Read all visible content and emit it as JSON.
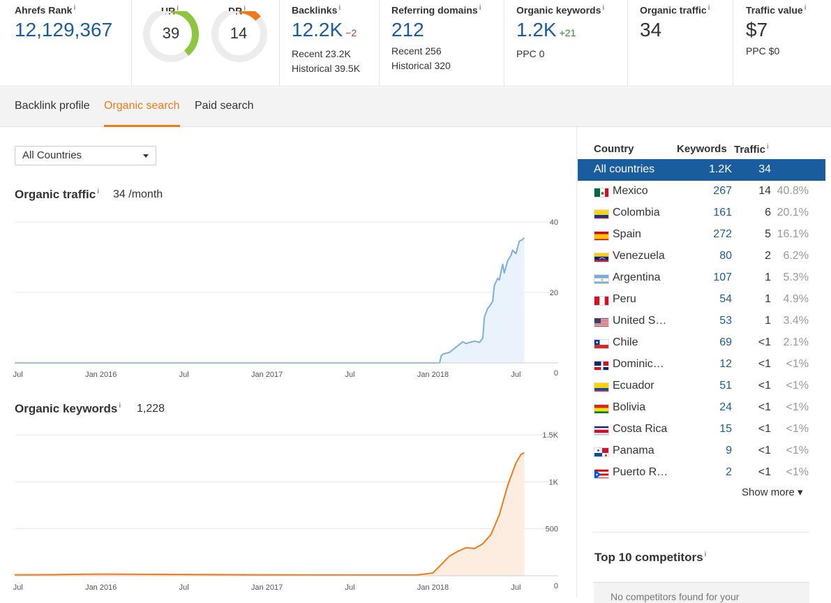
{
  "metrics": {
    "ahrefs_rank": {
      "label": "Ahrefs Rank",
      "value": "12,129,367"
    },
    "ur": {
      "label": "UR",
      "value": "39",
      "fraction": 0.39,
      "color": "#8cc63f"
    },
    "dr": {
      "label": "DR",
      "value": "14",
      "fraction": 0.14,
      "color": "#f07a1a"
    },
    "backlinks": {
      "label": "Backlinks",
      "value": "12.2K",
      "delta": "−2",
      "recent": "Recent 23.2K",
      "historical": "Historical 39.5K"
    },
    "referring_domains": {
      "label": "Referring domains",
      "value": "212",
      "recent": "Recent 256",
      "historical": "Historical 320"
    },
    "organic_keywords": {
      "label": "Organic keywords",
      "value": "1.2K",
      "delta": "+21",
      "ppc": "PPC 0"
    },
    "organic_traffic": {
      "label": "Organic traffic",
      "value": "34"
    },
    "traffic_value": {
      "label": "Traffic value",
      "value": "$7",
      "ppc": "PPC $0"
    }
  },
  "tabs": [
    "Backlink profile",
    "Organic search",
    "Paid search"
  ],
  "active_tab": "Organic search",
  "country_filter": {
    "selected": "All Countries"
  },
  "organic_traffic_section": {
    "title": "Organic traffic",
    "value": "34",
    "unit": "/month"
  },
  "organic_keywords_section": {
    "title": "Organic keywords",
    "value": "1,228"
  },
  "chart_data": [
    {
      "type": "area",
      "series": [
        {
          "name": "Organic traffic",
          "color": "#7ab0de",
          "fill": "#eaf3fb"
        }
      ],
      "x_tick_labels": [
        "Jul",
        "Jan 2016",
        "Jul",
        "Jan 2017",
        "Jul",
        "Jan 2018",
        "Jul"
      ],
      "x_ticks": [
        2015.5,
        2016.0,
        2016.5,
        2017.0,
        2017.5,
        2018.0,
        2018.5
      ],
      "y_tick_labels": [
        "0",
        "20",
        "40"
      ],
      "y_ticks": [
        0,
        20,
        40
      ],
      "xlim": [
        2015.48,
        2018.62
      ],
      "ylim": [
        0,
        40
      ],
      "x": [
        2015.48,
        2018.04,
        2018.05,
        2018.06,
        2018.1,
        2018.14,
        2018.18,
        2018.2,
        2018.25,
        2018.28,
        2018.3,
        2018.31,
        2018.33,
        2018.34,
        2018.36,
        2018.37,
        2018.39,
        2018.4,
        2018.42,
        2018.43,
        2018.45,
        2018.47,
        2018.48,
        2018.5,
        2018.52,
        2018.54,
        2018.55
      ],
      "y": [
        0,
        0,
        2,
        2.5,
        3,
        4.5,
        6,
        5.5,
        6.2,
        5.8,
        7,
        13,
        15.5,
        16,
        17.5,
        22,
        24,
        23.5,
        28,
        25.5,
        29,
        30.5,
        32,
        31,
        34.5,
        35,
        35.5
      ]
    },
    {
      "type": "area",
      "series": [
        {
          "name": "Organic keywords",
          "color": "#f07a1a",
          "fill": "#fdece0"
        }
      ],
      "x_tick_labels": [
        "Jul",
        "Jan 2016",
        "Jul",
        "Jan 2017",
        "Jul",
        "Jan 2018",
        "Jul"
      ],
      "x_ticks": [
        2015.5,
        2016.0,
        2016.5,
        2017.0,
        2017.5,
        2018.0,
        2018.5
      ],
      "y_tick_labels": [
        "0",
        "500",
        "1K",
        "1.5K"
      ],
      "y_ticks": [
        0,
        500,
        1000,
        1500
      ],
      "xlim": [
        2015.48,
        2018.62
      ],
      "ylim": [
        0,
        1500
      ],
      "x": [
        2015.48,
        2015.7,
        2016.0,
        2016.5,
        2017.0,
        2017.5,
        2017.9,
        2018.0,
        2018.05,
        2018.1,
        2018.15,
        2018.2,
        2018.25,
        2018.3,
        2018.35,
        2018.4,
        2018.45,
        2018.5,
        2018.53,
        2018.55
      ],
      "y": [
        10,
        12,
        18,
        14,
        10,
        8,
        8,
        30,
        120,
        210,
        260,
        300,
        290,
        340,
        440,
        650,
        960,
        1200,
        1290,
        1310
      ]
    }
  ],
  "country_table": {
    "headers": {
      "country": "Country",
      "keywords": "Keywords",
      "traffic": "Traffic"
    },
    "all_row": {
      "name": "All countries",
      "keywords": "1.2K",
      "traffic": "34"
    },
    "rows": [
      {
        "name": "Mexico",
        "keywords": "267",
        "traffic": "14",
        "pct": "40.8%",
        "flag": "mx"
      },
      {
        "name": "Colombia",
        "keywords": "161",
        "traffic": "6",
        "pct": "20.1%",
        "flag": "co"
      },
      {
        "name": "Spain",
        "keywords": "272",
        "traffic": "5",
        "pct": "16.1%",
        "flag": "es"
      },
      {
        "name": "Venezuela",
        "keywords": "80",
        "traffic": "2",
        "pct": "6.2%",
        "flag": "ve"
      },
      {
        "name": "Argentina",
        "keywords": "107",
        "traffic": "1",
        "pct": "5.3%",
        "flag": "ar"
      },
      {
        "name": "Peru",
        "keywords": "54",
        "traffic": "1",
        "pct": "4.9%",
        "flag": "pe"
      },
      {
        "name": "United S…",
        "keywords": "53",
        "traffic": "1",
        "pct": "3.4%",
        "flag": "us"
      },
      {
        "name": "Chile",
        "keywords": "69",
        "traffic": "<1",
        "pct": "2.1%",
        "flag": "cl"
      },
      {
        "name": "Dominic…",
        "keywords": "12",
        "traffic": "<1",
        "pct": "<1%",
        "flag": "do"
      },
      {
        "name": "Ecuador",
        "keywords": "51",
        "traffic": "<1",
        "pct": "<1%",
        "flag": "ec"
      },
      {
        "name": "Bolivia",
        "keywords": "24",
        "traffic": "<1",
        "pct": "<1%",
        "flag": "bo"
      },
      {
        "name": "Costa Rica",
        "keywords": "15",
        "traffic": "<1",
        "pct": "<1%",
        "flag": "cr"
      },
      {
        "name": "Panama",
        "keywords": "9",
        "traffic": "<1",
        "pct": "<1%",
        "flag": "pa"
      },
      {
        "name": "Puerto R…",
        "keywords": "2",
        "traffic": "<1",
        "pct": "<1%",
        "flag": "pr"
      }
    ],
    "show_more": "Show more ▾"
  },
  "competitors": {
    "title": "Top 10 competitors",
    "empty_text": "No competitors found for your"
  }
}
